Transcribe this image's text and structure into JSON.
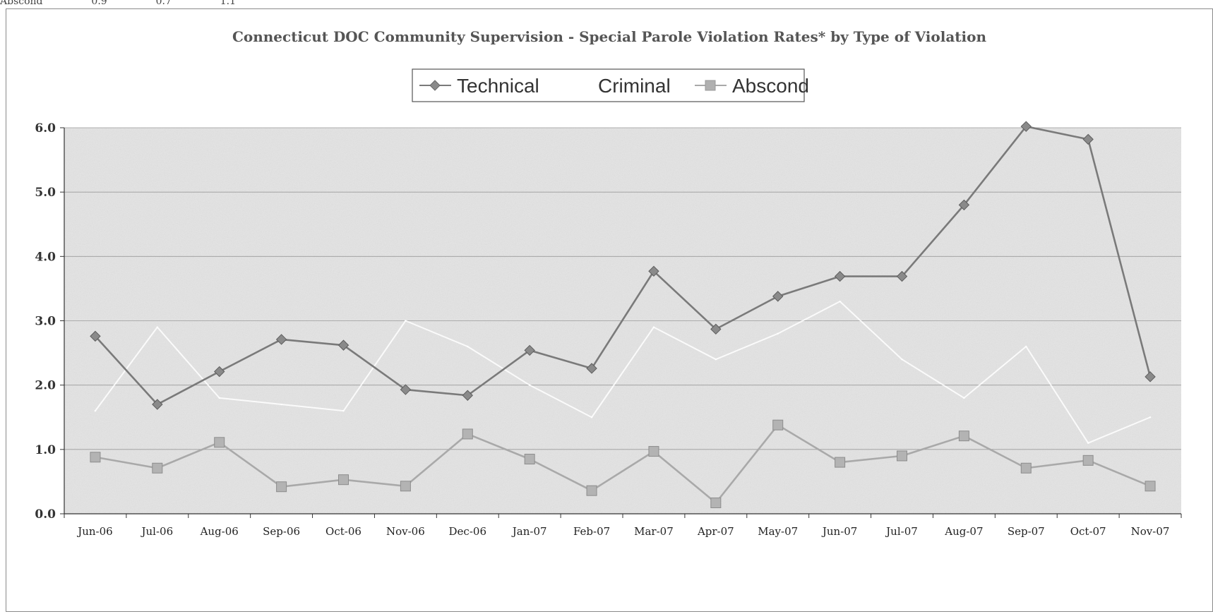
{
  "top_fragment": {
    "label": "Abscond",
    "v1": "0.9",
    "v2": "0.7",
    "v3": "1.1"
  },
  "chart_data": {
    "type": "line",
    "title": "Connecticut DOC Community Supervision -  Special Parole Violation Rates* by Type of Violation",
    "xlabel": "",
    "ylabel": "",
    "categories": [
      "Jun-06",
      "Jul-06",
      "Aug-06",
      "Sep-06",
      "Oct-06",
      "Nov-06",
      "Dec-06",
      "Jan-07",
      "Feb-07",
      "Mar-07",
      "Apr-07",
      "May-07",
      "Jun-07",
      "Jul-07",
      "Aug-07",
      "Sep-07",
      "Oct-07",
      "Nov-07"
    ],
    "ylim": [
      0,
      6
    ],
    "yticks": [
      "0.0",
      "1.0",
      "2.0",
      "3.0",
      "4.0",
      "5.0",
      "6.0"
    ],
    "grid": true,
    "legend_position": "top-center",
    "series": [
      {
        "name": "Technical",
        "color": "#7a7a7a",
        "marker": "diamond",
        "values": [
          2.76,
          1.7,
          2.21,
          2.71,
          2.62,
          1.93,
          1.84,
          2.54,
          2.26,
          3.77,
          2.87,
          3.38,
          3.69,
          3.69,
          4.8,
          6.02,
          5.82,
          2.13
        ]
      },
      {
        "name": "Criminal",
        "color": "#ffffff",
        "marker": "none",
        "values": [
          1.6,
          2.9,
          1.8,
          1.7,
          1.6,
          3.0,
          2.6,
          2.0,
          1.5,
          2.9,
          2.4,
          2.8,
          3.3,
          2.4,
          1.8,
          2.6,
          1.1,
          1.5
        ]
      },
      {
        "name": "Abscond",
        "color": "#a9a9a9",
        "marker": "square",
        "values": [
          0.88,
          0.71,
          1.11,
          0.42,
          0.53,
          0.43,
          1.24,
          0.85,
          0.36,
          0.97,
          0.17,
          1.38,
          0.8,
          0.9,
          1.21,
          0.71,
          0.83,
          0.43
        ]
      }
    ]
  }
}
